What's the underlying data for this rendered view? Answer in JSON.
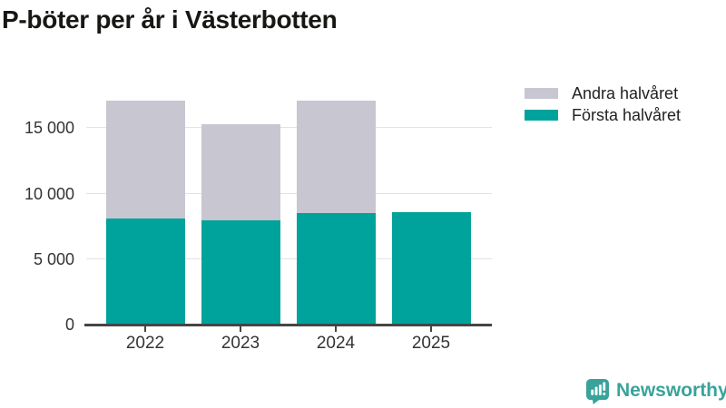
{
  "title": "P-böter per år i Västerbotten",
  "chart_data": {
    "type": "bar",
    "stacked": true,
    "title": "P-böter per år i Västerbotten",
    "categories": [
      "2022",
      "2023",
      "2024",
      "2025"
    ],
    "series": [
      {
        "name": "Första halvåret",
        "color": "#00a39b",
        "values": [
          8100,
          8000,
          8500,
          8600
        ]
      },
      {
        "name": "Andra halvåret",
        "color": "#c8c6d0",
        "values": [
          9000,
          7300,
          8600,
          0
        ]
      }
    ],
    "totals": [
      17100,
      15300,
      17100,
      8600
    ],
    "xlabel": "",
    "ylabel": "",
    "ylim": [
      0,
      17870
    ],
    "yticks": [
      0,
      5000,
      10000,
      15000
    ],
    "ytick_labels": [
      "0",
      "5 000",
      "10 000",
      "15 000"
    ],
    "grid": true,
    "legend_position": "top-right",
    "legend": {
      "entries": [
        {
          "label": "Andra halvåret",
          "color": "#c8c6d0"
        },
        {
          "label": "Första halvåret",
          "color": "#00a39b"
        }
      ]
    }
  },
  "colors": {
    "first_half_teal": "#00a39b",
    "second_half_gray": "#c8c6d0",
    "gridline": "#e3e2e8",
    "axis_line": "#454545",
    "axis_text": "#343434",
    "title_text": "#171814",
    "brand_teal": "#38a39b"
  },
  "branding": {
    "logo_text": "Newsworthy",
    "logo_color": "#38a39b",
    "logo_icon": "bar-chart-speech-bubble-icon"
  }
}
